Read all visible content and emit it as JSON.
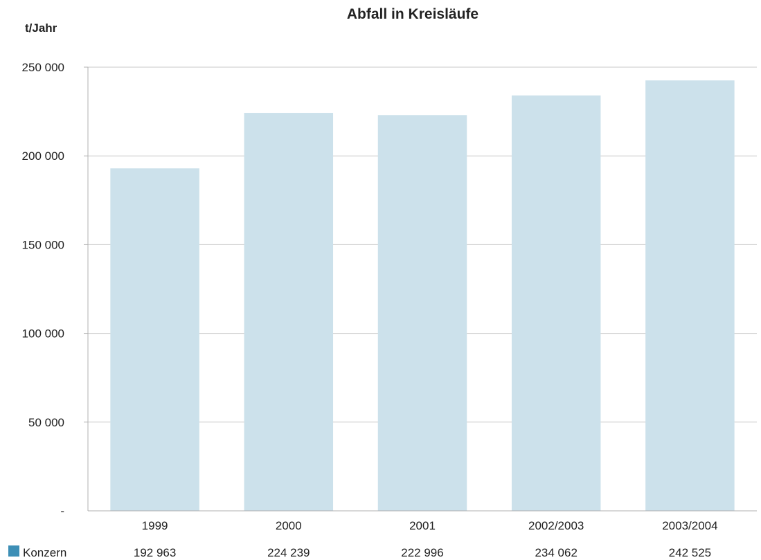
{
  "chart_data": {
    "type": "bar",
    "title": "Abfall in Kreisläufe",
    "ylabel": "t/Jahr",
    "xlabel": "",
    "categories": [
      "1999",
      "2000",
      "2001",
      "2002/2003",
      "2003/2004"
    ],
    "series": [
      {
        "name": "Konzern",
        "values": [
          192963,
          224239,
          222996,
          234062,
          242525
        ],
        "value_labels": [
          "192 963",
          "224 239",
          "222 996",
          "234 062",
          "242 525"
        ]
      }
    ],
    "ylim": [
      0,
      250000
    ],
    "yticks": [
      0,
      50000,
      100000,
      150000,
      200000,
      250000
    ],
    "ytick_labels": [
      "-",
      "50 000",
      "100 000",
      "150 000",
      "200 000",
      "250 000"
    ],
    "grid": true,
    "legend": "bottom-left",
    "colors": {
      "bar": "#cce1eb",
      "legend_swatch": "#3d8fb6",
      "grid": "#c8c8c8",
      "axis": "#b0b0b0"
    }
  }
}
